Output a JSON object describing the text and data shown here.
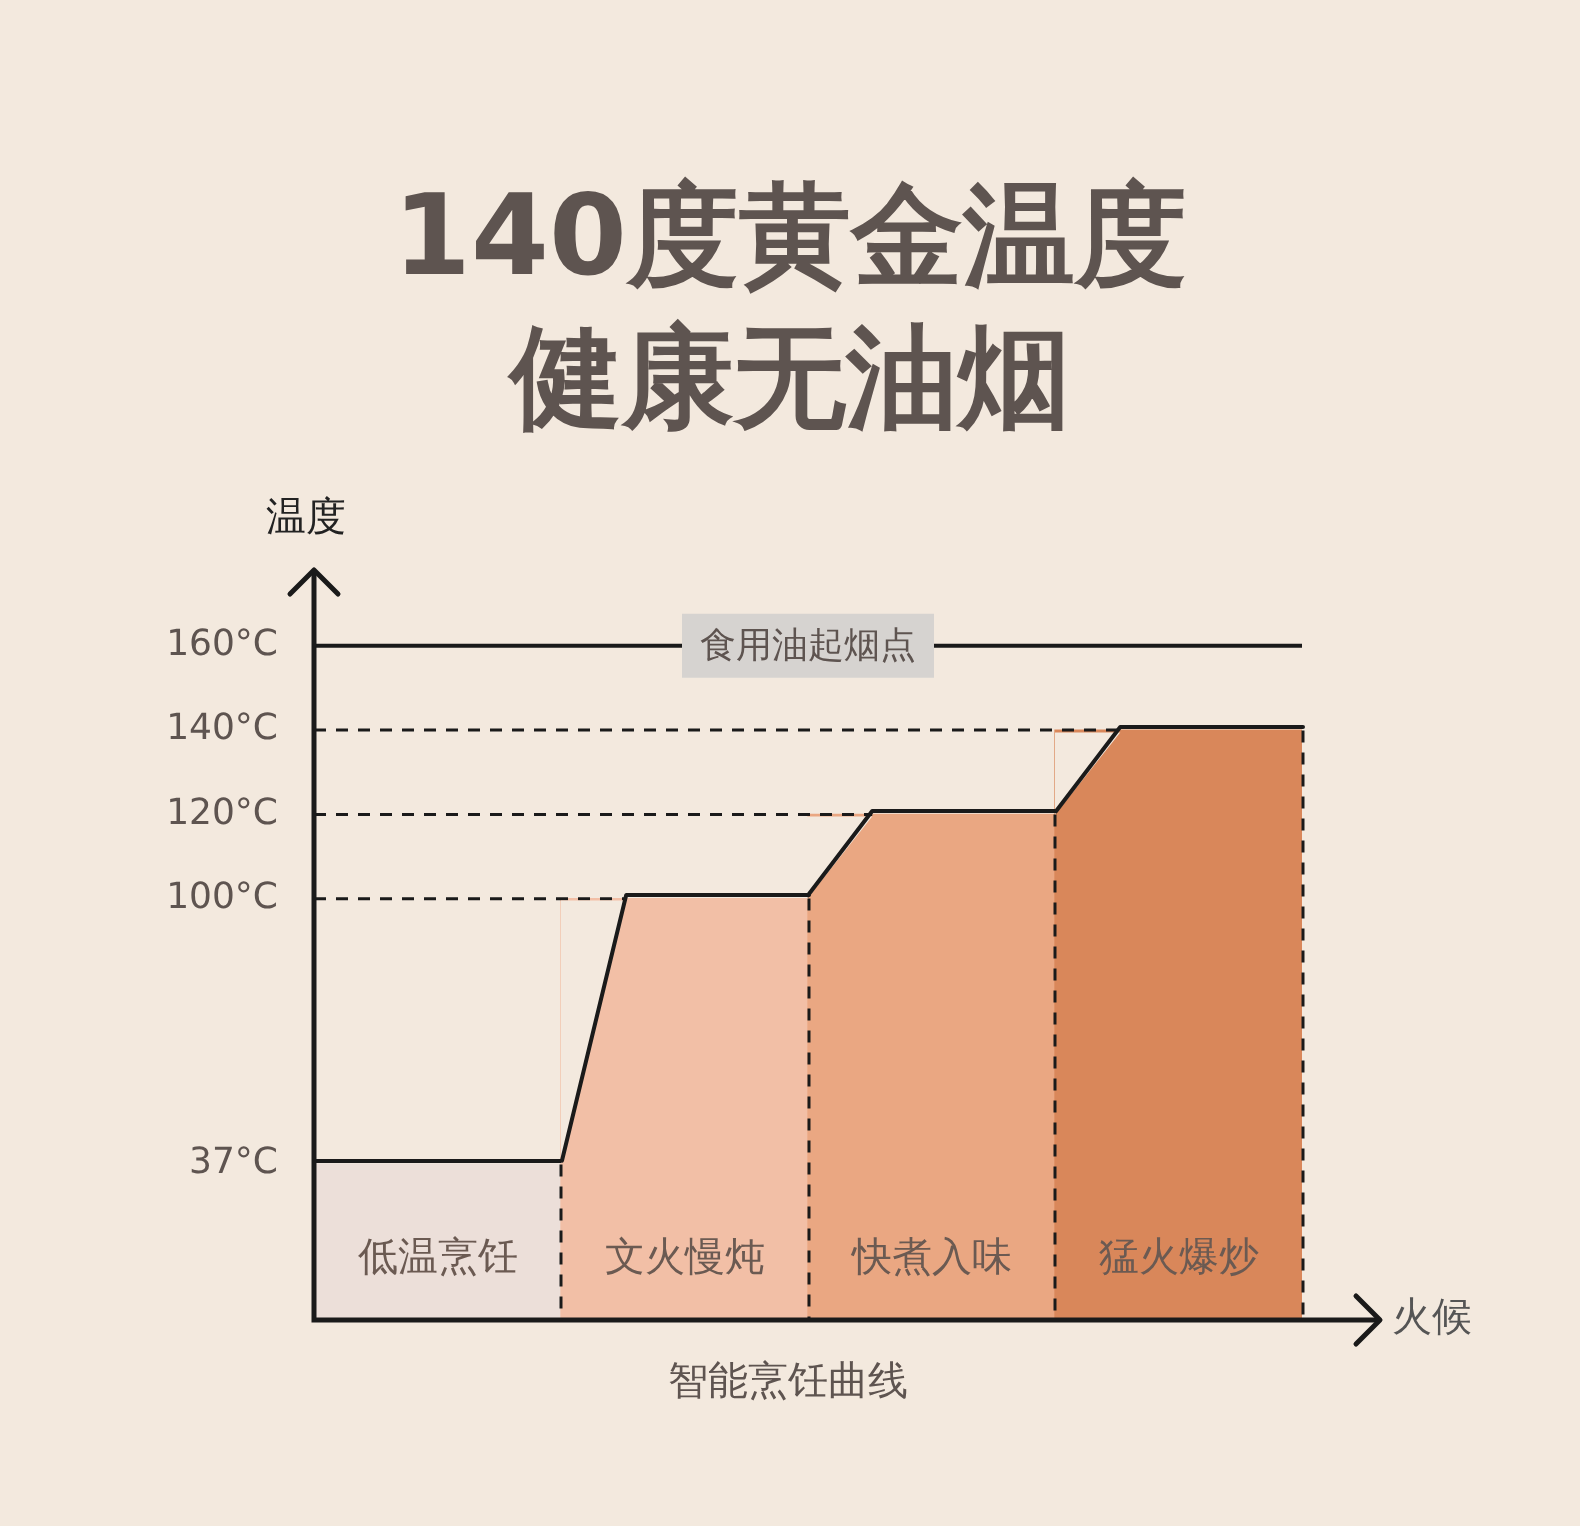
{
  "chart_data": {
    "type": "bar",
    "title": "140度黄金温度",
    "subtitle": "健康无油烟",
    "xlabel": "火候",
    "ylabel": "温度",
    "categories": [
      "低温烹饪",
      "文火慢炖",
      "快煮入味",
      "猛火爆炒"
    ],
    "values": [
      37,
      100,
      120,
      140
    ],
    "colors": [
      "#ecdfd9",
      "#f2bfa6",
      "#eaa782",
      "#d9875a"
    ],
    "ylim": [
      0,
      178
    ],
    "yticks": [
      {
        "value": 37,
        "label": "37°C"
      },
      {
        "value": 100,
        "label": "100°C"
      },
      {
        "value": 120,
        "label": "120°C"
      },
      {
        "value": 140,
        "label": "140°C"
      },
      {
        "value": 160,
        "label": "160°C"
      }
    ],
    "ref_lines": [
      {
        "axis": "y",
        "value": 100,
        "line_style": "dashed",
        "color": "#1a1a1a"
      },
      {
        "axis": "y",
        "value": 120,
        "line_style": "dashed",
        "color": "#1a1a1a"
      },
      {
        "axis": "y",
        "value": 140,
        "line_style": "dashed",
        "color": "#1a1a1a"
      },
      {
        "axis": "y",
        "value": 160,
        "label": "食用油起烟点",
        "line_style": "solid",
        "color": "#1a1a1a"
      }
    ],
    "annotations": [
      "智能烹饪曲线"
    ]
  }
}
